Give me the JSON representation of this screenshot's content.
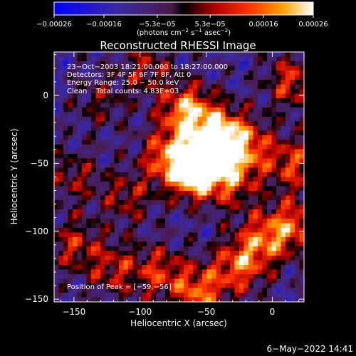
{
  "chart_data": {
    "type": "heatmap",
    "title": "Reconstructed RHESSI Image",
    "xlabel": "Heliocentric X (arcsec)",
    "ylabel": "Heliocentric Y (arcsec)",
    "xlim": [
      -165,
      24
    ],
    "ylim": [
      -152,
      32
    ],
    "x_ticks": [
      -150,
      -100,
      -50,
      0
    ],
    "x_tick_labels": [
      "−150",
      "−100",
      "−50",
      "0"
    ],
    "y_ticks": [
      0,
      -50,
      -100,
      -150
    ],
    "y_tick_labels": [
      "0",
      "−50",
      "−100",
      "−150"
    ],
    "colorbar": {
      "range": [
        -0.00026,
        0.00026
      ],
      "ticks": [
        -0.00026,
        -0.00016,
        -5.3e-05,
        5.3e-05,
        0.00016,
        0.00026
      ],
      "tick_labels": [
        "−0.00026",
        "−0.00016",
        "−5.3e−05",
        "5.3e−05",
        "0.00016",
        "0.00026"
      ],
      "unit_prefix": "(photons cm",
      "unit_exp1": "−2",
      "unit_mid": " s",
      "unit_exp2": "−1",
      "unit_mid2": " asec",
      "unit_exp3": "−2",
      "unit_suffix": ")"
    },
    "annotations": [
      "23−Oct−2003 18:21:00.000 to 18:27:00.000",
      "Detectors: 3F 4F 5F 6F 7F 8F, Att 0",
      "Energy Range: 25.0 − 50.0 keV",
      "Clean    Total counts: 4.83E+03"
    ],
    "peak_label": "Position of Peak = [−59,−56]",
    "peak": [
      -59,
      -56
    ],
    "sources": [
      {
        "x": -59,
        "y": -56,
        "amp": 1.0
      },
      {
        "x": -45,
        "y": -42,
        "amp": 0.75
      },
      {
        "x": -80,
        "y": -45,
        "amp": 0.6
      },
      {
        "x": -65,
        "y": -12,
        "amp": 0.8
      },
      {
        "x": -40,
        "y": -25,
        "amp": 0.55
      },
      {
        "x": -20,
        "y": -38,
        "amp": 0.6
      },
      {
        "x": -30,
        "y": -65,
        "amp": 0.45
      },
      {
        "x": 15,
        "y": 10,
        "amp": 0.55
      },
      {
        "x": 15,
        "y": -50,
        "amp": 0.55
      },
      {
        "x": 18,
        "y": -95,
        "amp": 0.55
      },
      {
        "x": -5,
        "y": -105,
        "amp": 0.6
      },
      {
        "x": -25,
        "y": -125,
        "amp": 0.65
      },
      {
        "x": -55,
        "y": -145,
        "amp": 0.65
      },
      {
        "x": -85,
        "y": -130,
        "amp": 0.5
      },
      {
        "x": -120,
        "y": -128,
        "amp": 0.45
      },
      {
        "x": -150,
        "y": -110,
        "amp": 0.45
      },
      {
        "x": -110,
        "y": -75,
        "amp": 0.4
      },
      {
        "x": -95,
        "y": 20,
        "amp": 0.4
      },
      {
        "x": -150,
        "y": -60,
        "amp": 0.35
      },
      {
        "x": -130,
        "y": -5,
        "amp": 0.3
      }
    ]
  },
  "footer": {
    "timestamp": "6−May−2022 14:41"
  }
}
